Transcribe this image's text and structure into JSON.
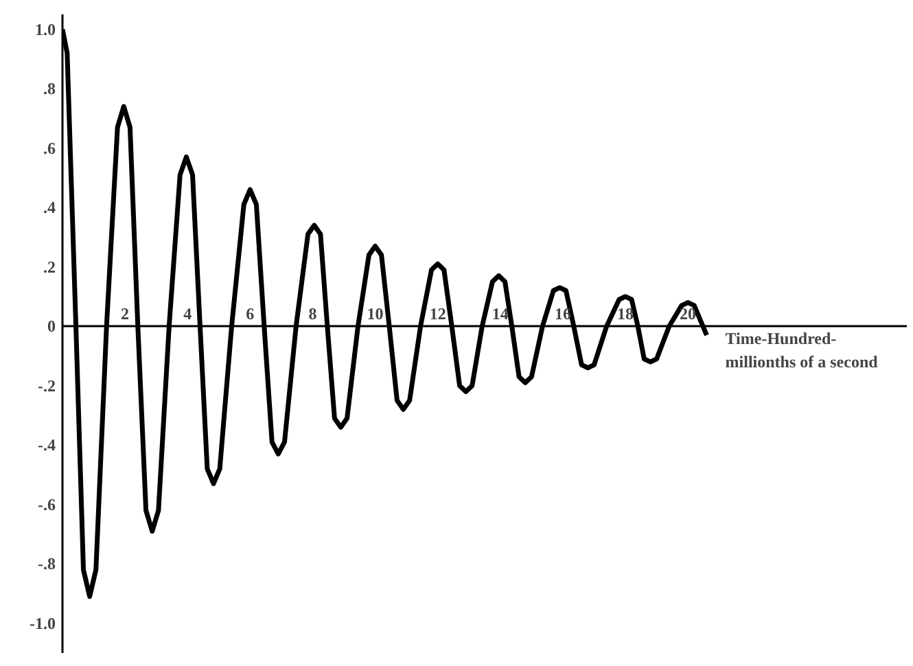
{
  "chart_data": {
    "type": "line",
    "xlabel": "Time-Hundred-\nmillionths of a second",
    "x": [
      0,
      0.15,
      0.43,
      0.67,
      0.87,
      1.07,
      1.41,
      1.76,
      1.96,
      2.16,
      2.41,
      2.67,
      2.87,
      3.07,
      3.41,
      3.76,
      3.96,
      4.16,
      4.4,
      4.63,
      4.83,
      5.03,
      5.41,
      5.8,
      6.0,
      6.2,
      6.45,
      6.7,
      6.9,
      7.1,
      7.47,
      7.85,
      8.05,
      8.25,
      8.47,
      8.7,
      8.9,
      9.1,
      9.45,
      9.8,
      10.0,
      10.2,
      10.45,
      10.7,
      10.9,
      11.1,
      11.45,
      11.8,
      12.0,
      12.2,
      12.45,
      12.7,
      12.9,
      13.1,
      13.42,
      13.75,
      13.95,
      14.15,
      14.37,
      14.6,
      14.8,
      15.0,
      15.35,
      15.7,
      15.9,
      16.1,
      16.35,
      16.6,
      16.8,
      17.0,
      17.4,
      17.8,
      18.0,
      18.2,
      18.4,
      18.6,
      18.8,
      19.0,
      19.4,
      19.8,
      20.0,
      20.2,
      20.6
    ],
    "series": [
      {
        "color": "#000000",
        "values": [
          1.0,
          0.92,
          0,
          -0.82,
          -0.91,
          -0.82,
          0,
          0.67,
          0.74,
          0.67,
          0,
          -0.62,
          -0.69,
          -0.62,
          0,
          0.51,
          0.57,
          0.51,
          0,
          -0.48,
          -0.53,
          -0.48,
          0,
          0.41,
          0.46,
          0.41,
          0,
          -0.39,
          -0.43,
          -0.39,
          0,
          0.31,
          0.34,
          0.31,
          0,
          -0.31,
          -0.34,
          -0.31,
          0,
          0.24,
          0.27,
          0.24,
          0,
          -0.25,
          -0.28,
          -0.25,
          0,
          0.19,
          0.21,
          0.19,
          0,
          -0.2,
          -0.22,
          -0.2,
          0,
          0.15,
          0.17,
          0.15,
          0,
          -0.17,
          -0.19,
          -0.17,
          0,
          0.12,
          0.13,
          0.12,
          0,
          -0.13,
          -0.14,
          -0.13,
          0,
          0.09,
          0.1,
          0.09,
          0,
          -0.11,
          -0.12,
          -0.11,
          0,
          0.07,
          0.08,
          0.07,
          -0.03
        ]
      }
    ],
    "xlim": [
      0,
      27
    ],
    "ylim": [
      -1.1,
      1.05
    ],
    "xticks": [
      2,
      4,
      6,
      8,
      10,
      12,
      14,
      16,
      18,
      20
    ],
    "yticks": [
      {
        "value": 1.0,
        "label": "1.0"
      },
      {
        "value": 0.8,
        "label": ".8"
      },
      {
        "value": 0.6,
        "label": ".6"
      },
      {
        "value": 0.4,
        "label": ".4"
      },
      {
        "value": 0.2,
        "label": ".2"
      },
      0,
      {
        "value": -0.2,
        "label": "-.2"
      },
      {
        "value": -0.4,
        "label": "-.4"
      },
      {
        "value": -0.6,
        "label": "-.6"
      },
      {
        "value": -0.8,
        "label": "-.8"
      },
      {
        "value": -1.0,
        "label": "-1.0"
      }
    ],
    "grid": false,
    "line_style": "solid"
  }
}
